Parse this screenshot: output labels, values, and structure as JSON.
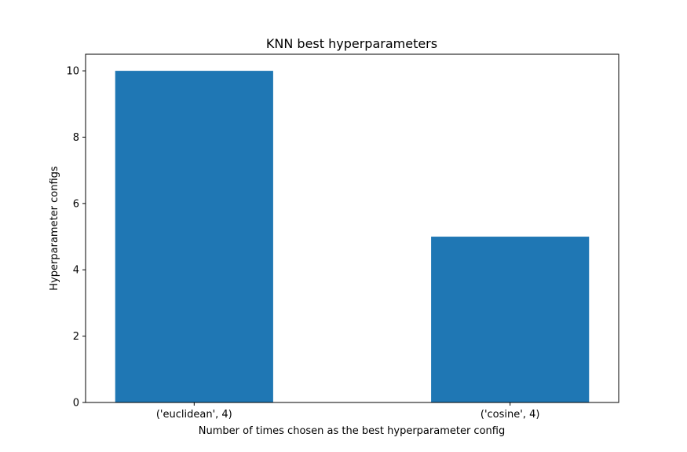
{
  "chart_data": {
    "type": "bar",
    "title": "KNN best hyperparameters",
    "xlabel": "Number of times chosen as the best hyperparameter config",
    "ylabel": "Hyperparameter configs",
    "categories": [
      "('euclidean', 4)",
      "('cosine', 4)"
    ],
    "values": [
      10,
      5
    ],
    "ylim": [
      0,
      10.5
    ],
    "yticks": [
      0,
      2,
      4,
      6,
      8,
      10
    ],
    "bar_color": "#1f77b4",
    "grid": false,
    "legend": "none"
  }
}
